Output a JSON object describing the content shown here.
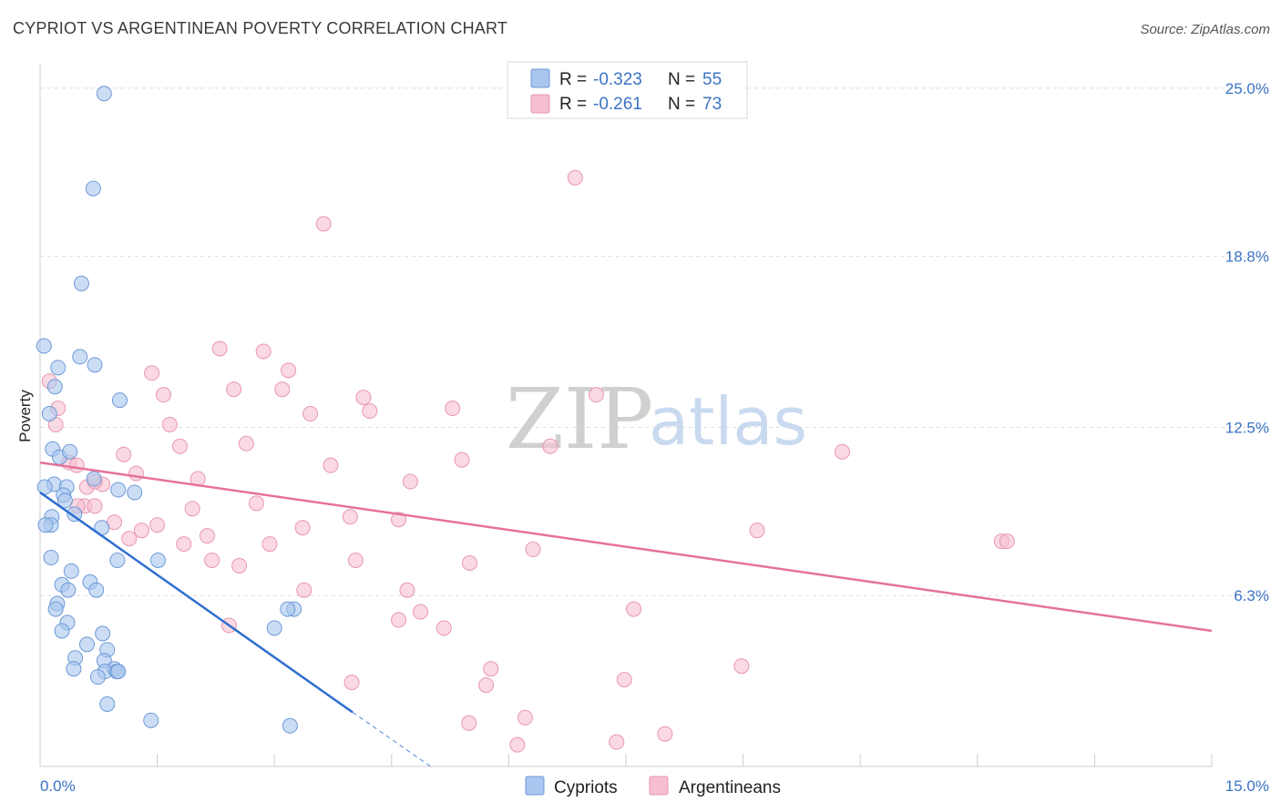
{
  "header": {
    "title": "CYPRIOT VS ARGENTINEAN POVERTY CORRELATION CHART",
    "source": "Source: ZipAtlas.com"
  },
  "watermark": {
    "zip": "ZIP",
    "atlas": "atlas"
  },
  "colors": {
    "cypriots_fill": "#a9c6ef",
    "cypriots_stroke": "#6d9ad8",
    "cypriots_line": "#2f6fd0",
    "argentineans_fill": "#f6bfd0",
    "argentineans_stroke": "#e897b1",
    "argentineans_line": "#e5729a",
    "tick_label": "#3b73c4",
    "grid": "#dddddd"
  },
  "legend_top": {
    "rows": [
      {
        "r_label": "R =",
        "r_value": "-0.323",
        "n_label": "N =",
        "n_value": "55"
      },
      {
        "r_label": "R =",
        "r_value": "-0.261",
        "n_label": "N =",
        "n_value": "73"
      }
    ]
  },
  "legend_bottom": {
    "items": [
      "Cypriots",
      "Argentineans"
    ]
  },
  "chart_data": {
    "type": "scatter",
    "title": "CYPRIOT VS ARGENTINEAN POVERTY CORRELATION CHART",
    "xlabel": "",
    "ylabel": "Poverty",
    "xlim": [
      0,
      15
    ],
    "ylim": [
      0,
      25.9
    ],
    "x_tick_labels": [
      "0.0%",
      "15.0%"
    ],
    "y_ticks": [
      6.3,
      12.5,
      18.8,
      25.0
    ],
    "y_tick_labels": [
      "6.3%",
      "12.5%",
      "18.8%",
      "25.0%"
    ],
    "grid": true,
    "legend_position": "top-center",
    "series": [
      {
        "name": "Cypriots",
        "R": -0.323,
        "N": 55,
        "trend": {
          "x": [
            0.0,
            4.0
          ],
          "y": [
            10.1,
            2.0
          ],
          "dashed_to": [
            5.0,
            0.0
          ]
        },
        "points": [
          [
            0.82,
            24.8
          ],
          [
            0.68,
            21.3
          ],
          [
            0.53,
            17.8
          ],
          [
            0.05,
            15.5
          ],
          [
            0.51,
            15.1
          ],
          [
            0.23,
            14.7
          ],
          [
            0.7,
            14.8
          ],
          [
            0.19,
            14.0
          ],
          [
            1.02,
            13.5
          ],
          [
            0.12,
            13.0
          ],
          [
            0.16,
            11.7
          ],
          [
            0.25,
            11.4
          ],
          [
            0.38,
            11.6
          ],
          [
            0.69,
            10.6
          ],
          [
            0.18,
            10.4
          ],
          [
            0.34,
            10.3
          ],
          [
            0.3,
            10.0
          ],
          [
            1.0,
            10.2
          ],
          [
            0.06,
            10.3
          ],
          [
            1.21,
            10.1
          ],
          [
            0.32,
            9.8
          ],
          [
            0.44,
            9.3
          ],
          [
            0.15,
            9.2
          ],
          [
            0.14,
            8.9
          ],
          [
            0.79,
            8.8
          ],
          [
            0.07,
            8.9
          ],
          [
            0.14,
            7.7
          ],
          [
            0.99,
            7.6
          ],
          [
            1.51,
            7.6
          ],
          [
            0.4,
            7.2
          ],
          [
            0.28,
            6.7
          ],
          [
            0.64,
            6.8
          ],
          [
            0.36,
            6.5
          ],
          [
            0.72,
            6.5
          ],
          [
            0.22,
            6.0
          ],
          [
            0.2,
            5.8
          ],
          [
            0.35,
            5.3
          ],
          [
            0.28,
            5.0
          ],
          [
            3.0,
            5.1
          ],
          [
            3.25,
            5.8
          ],
          [
            3.17,
            5.8
          ],
          [
            0.8,
            4.9
          ],
          [
            0.6,
            4.5
          ],
          [
            0.86,
            4.3
          ],
          [
            0.45,
            4.0
          ],
          [
            0.82,
            3.9
          ],
          [
            0.43,
            3.6
          ],
          [
            0.95,
            3.6
          ],
          [
            0.83,
            3.5
          ],
          [
            0.74,
            3.3
          ],
          [
            0.98,
            3.5
          ],
          [
            0.86,
            2.3
          ],
          [
            1.42,
            1.7
          ],
          [
            3.2,
            1.5
          ],
          [
            1.0,
            3.5
          ]
        ]
      },
      {
        "name": "Argentineans",
        "R": -0.261,
        "N": 73,
        "trend": {
          "x": [
            0.0,
            15.0
          ],
          "y": [
            11.2,
            5.0
          ]
        },
        "points": [
          [
            6.85,
            21.7
          ],
          [
            3.63,
            20.0
          ],
          [
            2.3,
            15.4
          ],
          [
            2.86,
            15.3
          ],
          [
            3.18,
            14.6
          ],
          [
            1.43,
            14.5
          ],
          [
            0.12,
            14.2
          ],
          [
            2.48,
            13.9
          ],
          [
            3.1,
            13.9
          ],
          [
            1.58,
            13.7
          ],
          [
            7.12,
            13.7
          ],
          [
            4.14,
            13.6
          ],
          [
            0.23,
            13.2
          ],
          [
            4.22,
            13.1
          ],
          [
            5.28,
            13.2
          ],
          [
            3.46,
            13.0
          ],
          [
            0.2,
            12.6
          ],
          [
            1.66,
            12.6
          ],
          [
            2.64,
            11.9
          ],
          [
            1.79,
            11.8
          ],
          [
            6.53,
            11.8
          ],
          [
            10.27,
            11.6
          ],
          [
            1.07,
            11.5
          ],
          [
            0.37,
            11.2
          ],
          [
            0.47,
            11.1
          ],
          [
            3.72,
            11.1
          ],
          [
            5.4,
            11.3
          ],
          [
            1.23,
            10.8
          ],
          [
            2.02,
            10.6
          ],
          [
            4.74,
            10.5
          ],
          [
            0.6,
            10.3
          ],
          [
            0.8,
            10.4
          ],
          [
            0.7,
            10.5
          ],
          [
            2.77,
            9.7
          ],
          [
            0.57,
            9.6
          ],
          [
            0.48,
            9.6
          ],
          [
            1.95,
            9.5
          ],
          [
            3.97,
            9.2
          ],
          [
            4.59,
            9.1
          ],
          [
            0.95,
            9.0
          ],
          [
            1.5,
            8.9
          ],
          [
            1.3,
            8.7
          ],
          [
            3.36,
            8.8
          ],
          [
            9.18,
            8.7
          ],
          [
            2.14,
            8.5
          ],
          [
            1.14,
            8.4
          ],
          [
            12.31,
            8.3
          ],
          [
            12.38,
            8.3
          ],
          [
            1.84,
            8.2
          ],
          [
            2.94,
            8.2
          ],
          [
            6.31,
            8.0
          ],
          [
            2.2,
            7.6
          ],
          [
            4.04,
            7.6
          ],
          [
            5.5,
            7.5
          ],
          [
            2.55,
            7.4
          ],
          [
            3.38,
            6.5
          ],
          [
            4.7,
            6.5
          ],
          [
            7.6,
            5.8
          ],
          [
            4.87,
            5.7
          ],
          [
            4.59,
            5.4
          ],
          [
            2.42,
            5.2
          ],
          [
            5.17,
            5.1
          ],
          [
            8.98,
            3.7
          ],
          [
            5.77,
            3.6
          ],
          [
            7.48,
            3.2
          ],
          [
            3.99,
            3.1
          ],
          [
            5.71,
            3.0
          ],
          [
            6.21,
            1.8
          ],
          [
            5.49,
            1.6
          ],
          [
            8.0,
            1.2
          ],
          [
            7.38,
            0.9
          ],
          [
            6.11,
            0.8
          ],
          [
            0.7,
            9.6
          ]
        ]
      }
    ]
  }
}
